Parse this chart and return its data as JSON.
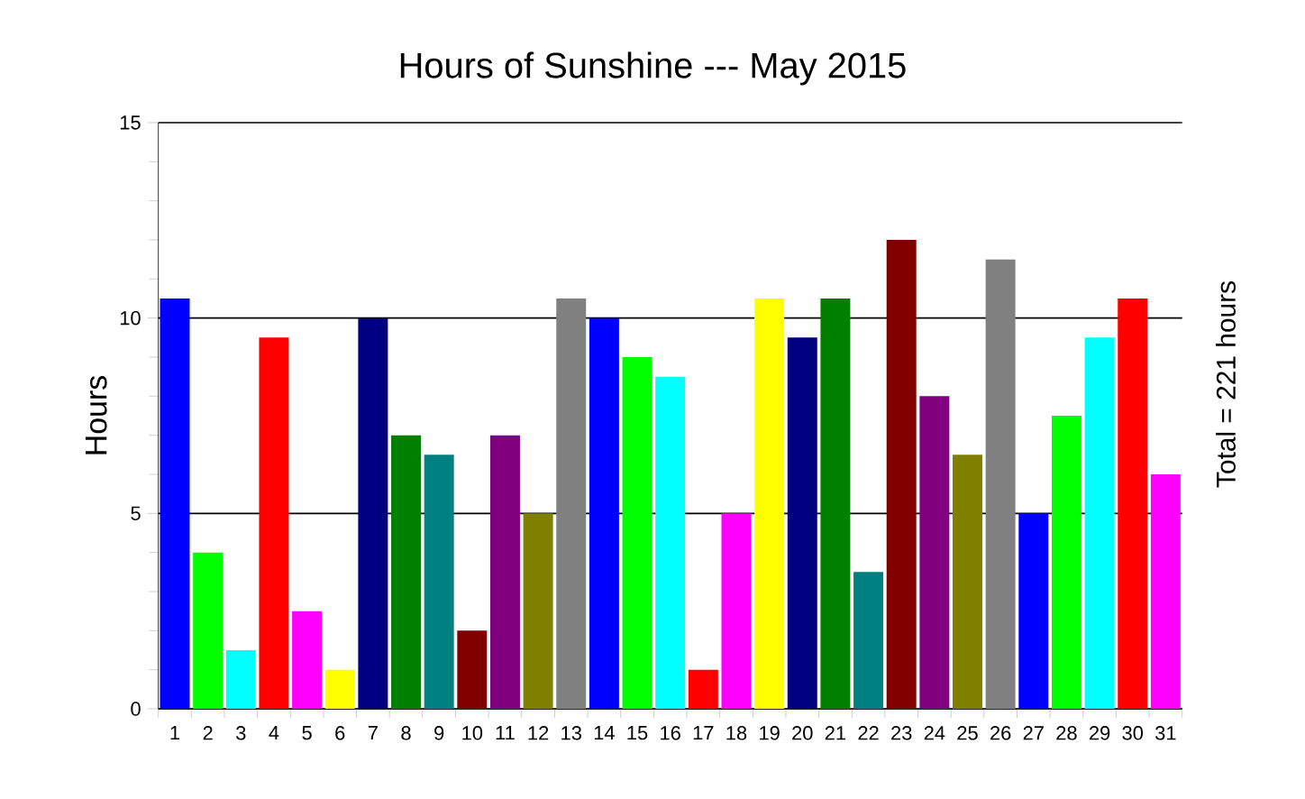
{
  "chart_data": {
    "type": "bar",
    "title": "Hours of Sunshine --- May 2015",
    "ylabel": "Hours",
    "annotations": [
      "Total = 221 hours"
    ],
    "categories": [
      "1",
      "2",
      "3",
      "4",
      "5",
      "6",
      "7",
      "8",
      "9",
      "10",
      "11",
      "12",
      "13",
      "14",
      "15",
      "16",
      "17",
      "18",
      "19",
      "20",
      "21",
      "22",
      "23",
      "24",
      "25",
      "26",
      "27",
      "28",
      "29",
      "30",
      "31"
    ],
    "values": [
      10.5,
      4,
      1.5,
      9.5,
      2.5,
      1,
      10,
      7,
      6.5,
      2,
      7,
      5,
      10.5,
      10,
      9,
      8.5,
      1,
      5,
      10.5,
      9.5,
      10.5,
      3.5,
      12,
      8,
      6.5,
      11.5,
      5,
      7.5,
      9.5,
      10.5,
      6
    ],
    "colors": [
      "#0000ff",
      "#00ff00",
      "#00ffff",
      "#ff0000",
      "#ff00ff",
      "#ffff00",
      "#000080",
      "#008000",
      "#008080",
      "#800000",
      "#800080",
      "#808000",
      "#808080",
      "#0000ff",
      "#00ff00",
      "#00ffff",
      "#ff0000",
      "#ff00ff",
      "#ffff00",
      "#000080",
      "#008000",
      "#008080",
      "#800000",
      "#800080",
      "#808000",
      "#808080",
      "#0000ff",
      "#00ff00",
      "#00ffff",
      "#ff0000",
      "#ff00ff"
    ],
    "ylim": [
      0,
      15
    ],
    "yticks": [
      0,
      5,
      10,
      15
    ],
    "grid": "y"
  }
}
